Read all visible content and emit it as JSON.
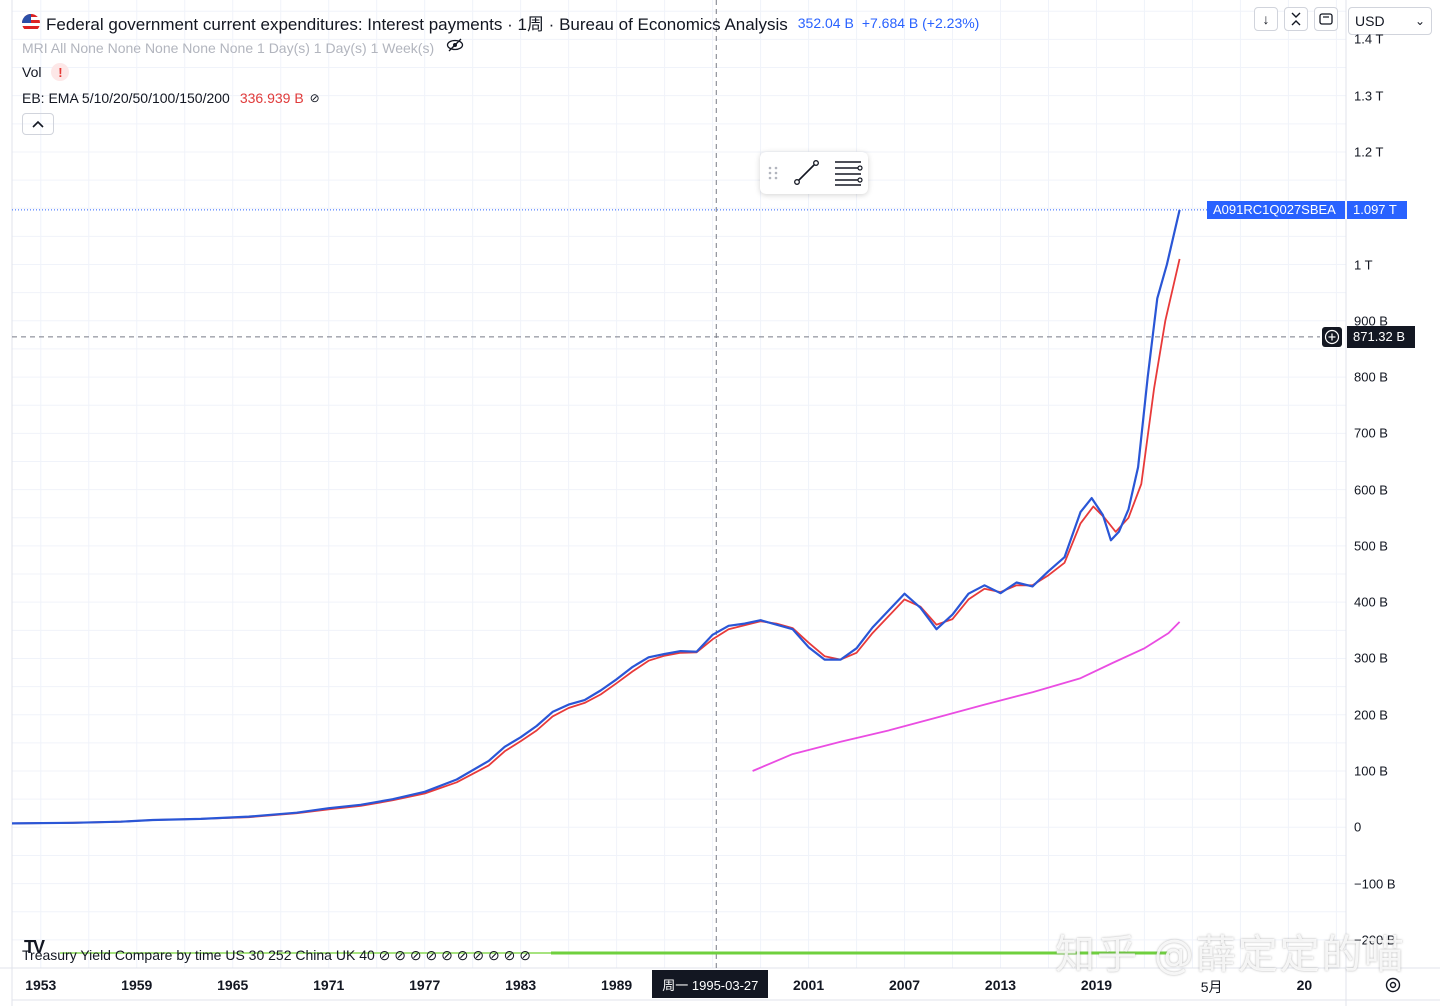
{
  "header": {
    "title": "Federal government current expenditures: Interest payments · 1周 · Bureau of Economics Analysis",
    "price_text": "352.04 B",
    "change_text": "+7.684 B (+2.23%)",
    "sub_line": "MRI All None None None None None 1 Day(s) 1 Day(s) 1 Week(s)",
    "vol_label": "Vol",
    "warn_symbol": "!",
    "ema_label": "EB: EMA 5/10/20/50/100/150/200",
    "ema_value": "336.939 B",
    "ema_eye": "⊘",
    "collapse_icon": "⌃",
    "currency": "USD",
    "currency_chevron": "⌄"
  },
  "toolbar": {
    "down_icon": "↓",
    "collapse_icon": "⇅",
    "maximize_icon": "⟲"
  },
  "overlay": {
    "symbol_tag": "A091RC1Q027SBEA",
    "last_value_tag": "1.097 T",
    "crosshair_value": "871.32 B",
    "crosshair_date": "周一 1995-03-27",
    "crosshair_plus": "+",
    "bottom_text": "Treasury Yield Compare by time US 30 252 China UK 40 ⊘ ⊘ ⊘ ⊘ ⊘ ⊘ ⊘ ⊘ ⊘ ⊘",
    "tv_logo": "TV",
    "watermark": "知乎 @薛定定的喵",
    "settings_icon": "⚙"
  },
  "chart_data": {
    "type": "line",
    "y_ticks": [
      "1.4 T",
      "1.3 T",
      "1.2 T",
      "1 T",
      "900 B",
      "800 B",
      "700 B",
      "600 B",
      "500 B",
      "400 B",
      "300 B",
      "200 B",
      "100 B",
      "0",
      "−100 B",
      "−200 B"
    ],
    "y_tick_values": [
      1400,
      1300,
      1200,
      1000,
      900,
      800,
      700,
      600,
      500,
      400,
      300,
      200,
      100,
      0,
      -100,
      -200
    ],
    "x_ticks": [
      "1953",
      "1959",
      "1965",
      "1971",
      "1977",
      "1983",
      "1989",
      "2001",
      "2007",
      "2013",
      "2019",
      "5月",
      "20"
    ],
    "x_tick_values": [
      1953,
      1959,
      1965,
      1971,
      1977,
      1983,
      1989,
      2001,
      2007,
      2013,
      2019,
      2026.2,
      2032
    ],
    "ylim": [
      -250,
      1470
    ],
    "xlim": [
      1951.2,
      2034.6
    ],
    "crosshair": {
      "x": 1995.23,
      "y": 871.32
    },
    "last_value": 1097,
    "series": [
      {
        "name": "A091RC1Q027SBEA",
        "color": "#2a56d6",
        "points": [
          [
            1951.2,
            7
          ],
          [
            1955,
            8
          ],
          [
            1958,
            10
          ],
          [
            1960,
            13
          ],
          [
            1963,
            15
          ],
          [
            1966,
            19
          ],
          [
            1969,
            26
          ],
          [
            1971,
            34
          ],
          [
            1973,
            40
          ],
          [
            1975,
            50
          ],
          [
            1977,
            63
          ],
          [
            1979,
            85
          ],
          [
            1981,
            118
          ],
          [
            1982,
            143
          ],
          [
            1983,
            160
          ],
          [
            1984,
            180
          ],
          [
            1985,
            205
          ],
          [
            1986,
            218
          ],
          [
            1987,
            226
          ],
          [
            1988,
            243
          ],
          [
            1989,
            263
          ],
          [
            1990,
            285
          ],
          [
            1991,
            302
          ],
          [
            1992,
            308
          ],
          [
            1993,
            313
          ],
          [
            1994,
            312
          ],
          [
            1995,
            342
          ],
          [
            1996,
            358
          ],
          [
            1997,
            362
          ],
          [
            1998,
            368
          ],
          [
            1999,
            360
          ],
          [
            2000,
            352
          ],
          [
            2001,
            320
          ],
          [
            2002,
            298
          ],
          [
            2003,
            298
          ],
          [
            2004,
            318
          ],
          [
            2005,
            355
          ],
          [
            2006,
            385
          ],
          [
            2007,
            415
          ],
          [
            2008,
            390
          ],
          [
            2009,
            352
          ],
          [
            2010,
            378
          ],
          [
            2011,
            415
          ],
          [
            2012,
            430
          ],
          [
            2013,
            416
          ],
          [
            2014,
            435
          ],
          [
            2015,
            428
          ],
          [
            2016,
            455
          ],
          [
            2017,
            480
          ],
          [
            2018,
            560
          ],
          [
            2018.7,
            585
          ],
          [
            2019.4,
            555
          ],
          [
            2019.9,
            510
          ],
          [
            2020.4,
            525
          ],
          [
            2021,
            565
          ],
          [
            2021.6,
            640
          ],
          [
            2022.2,
            800
          ],
          [
            2022.8,
            940
          ],
          [
            2023.4,
            1000
          ],
          [
            2024.2,
            1097
          ]
        ]
      },
      {
        "name": "",
        "color": "#e83a3a",
        "points": [
          [
            1951.2,
            7
          ],
          [
            1955,
            8
          ],
          [
            1958,
            10
          ],
          [
            1960,
            13
          ],
          [
            1963,
            15
          ],
          [
            1966,
            18
          ],
          [
            1969,
            25
          ],
          [
            1971,
            32
          ],
          [
            1973,
            38
          ],
          [
            1975,
            48
          ],
          [
            1977,
            60
          ],
          [
            1979,
            80
          ],
          [
            1981,
            110
          ],
          [
            1982,
            135
          ],
          [
            1983,
            153
          ],
          [
            1984,
            172
          ],
          [
            1985,
            197
          ],
          [
            1986,
            212
          ],
          [
            1987,
            221
          ],
          [
            1988,
            236
          ],
          [
            1989,
            256
          ],
          [
            1990,
            277
          ],
          [
            1991,
            296
          ],
          [
            1992,
            305
          ],
          [
            1993,
            310
          ],
          [
            1994,
            311
          ],
          [
            1995,
            334
          ],
          [
            1996,
            352
          ],
          [
            1997,
            359
          ],
          [
            1998,
            366
          ],
          [
            1999,
            362
          ],
          [
            2000,
            354
          ],
          [
            2001,
            328
          ],
          [
            2002,
            304
          ],
          [
            2003,
            298
          ],
          [
            2004,
            310
          ],
          [
            2005,
            345
          ],
          [
            2006,
            375
          ],
          [
            2007,
            405
          ],
          [
            2008,
            392
          ],
          [
            2009,
            360
          ],
          [
            2010,
            370
          ],
          [
            2011,
            405
          ],
          [
            2012,
            424
          ],
          [
            2013,
            418
          ],
          [
            2014,
            430
          ],
          [
            2015,
            430
          ],
          [
            2016,
            448
          ],
          [
            2017,
            470
          ],
          [
            2018,
            540
          ],
          [
            2018.8,
            570
          ],
          [
            2019.5,
            550
          ],
          [
            2020.2,
            525
          ],
          [
            2021,
            550
          ],
          [
            2021.8,
            610
          ],
          [
            2022.6,
            780
          ],
          [
            2023.3,
            900
          ],
          [
            2024.2,
            1010
          ]
        ]
      },
      {
        "name": "",
        "color": "#ea4de2",
        "points": [
          [
            1997.5,
            100
          ],
          [
            2000,
            130
          ],
          [
            2003,
            152
          ],
          [
            2006,
            172
          ],
          [
            2009,
            195
          ],
          [
            2012,
            218
          ],
          [
            2015,
            240
          ],
          [
            2018,
            265
          ],
          [
            2020,
            292
          ],
          [
            2022,
            318
          ],
          [
            2023.5,
            345
          ],
          [
            2024.2,
            365
          ]
        ]
      }
    ]
  }
}
